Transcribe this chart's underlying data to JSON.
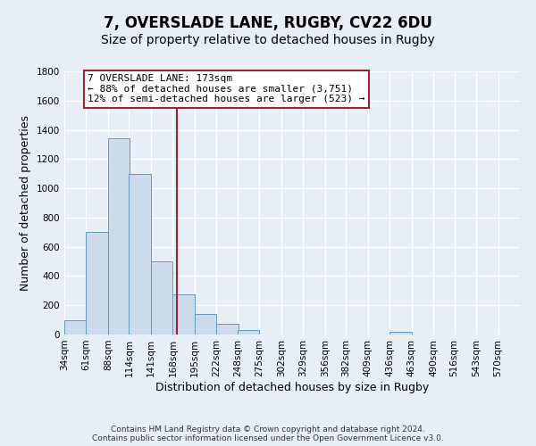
{
  "title": "7, OVERSLADE LANE, RUGBY, CV22 6DU",
  "subtitle": "Size of property relative to detached houses in Rugby",
  "xlabel": "Distribution of detached houses by size in Rugby",
  "ylabel": "Number of detached properties",
  "bar_left_edges": [
    34,
    61,
    88,
    114,
    141,
    168,
    195,
    222,
    248,
    275,
    302,
    329,
    356,
    382,
    409,
    436,
    463,
    490,
    516,
    543
  ],
  "bar_heights": [
    100,
    700,
    1340,
    1100,
    500,
    275,
    140,
    75,
    30,
    0,
    0,
    0,
    0,
    0,
    0,
    20,
    0,
    0,
    0,
    0
  ],
  "bin_width": 27,
  "bar_color": "#ccdaeb",
  "bar_edge_color": "#6699bb",
  "vline_x": 173,
  "vline_color": "#9b2335",
  "annotation_box_color": "#ffffff",
  "annotation_border_color": "#9b2335",
  "annotation_text_line1": "7 OVERSLADE LANE: 173sqm",
  "annotation_text_line2": "← 88% of detached houses are smaller (3,751)",
  "annotation_text_line3": "12% of semi-detached houses are larger (523) →",
  "ylim": [
    0,
    1800
  ],
  "yticks": [
    0,
    200,
    400,
    600,
    800,
    1000,
    1200,
    1400,
    1600,
    1800
  ],
  "tick_labels": [
    "34sqm",
    "61sqm",
    "88sqm",
    "114sqm",
    "141sqm",
    "168sqm",
    "195sqm",
    "222sqm",
    "248sqm",
    "275sqm",
    "302sqm",
    "329sqm",
    "356sqm",
    "382sqm",
    "409sqm",
    "436sqm",
    "463sqm",
    "490sqm",
    "516sqm",
    "543sqm",
    "570sqm"
  ],
  "footer_line1": "Contains HM Land Registry data © Crown copyright and database right 2024.",
  "footer_line2": "Contains public sector information licensed under the Open Government Licence v3.0.",
  "background_color": "#e8eef5",
  "plot_bg_color": "#e8eef5",
  "grid_color": "#ffffff",
  "title_fontsize": 12,
  "subtitle_fontsize": 10,
  "axis_label_fontsize": 9,
  "tick_fontsize": 7.5,
  "footer_fontsize": 6.5
}
